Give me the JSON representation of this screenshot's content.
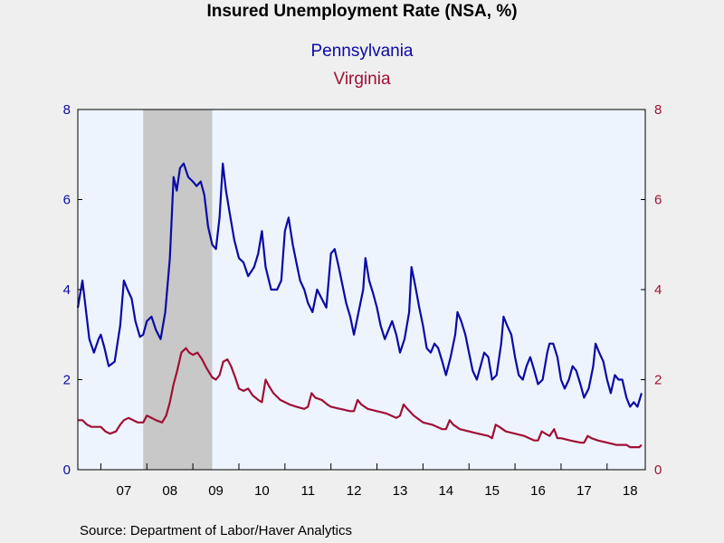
{
  "chart_data": {
    "type": "line",
    "title": "Insured Unemployment Rate (NSA, %)",
    "source": "Source:  Department of Labor/Haver Analytics",
    "x_range": [
      2006.5,
      2018.83
    ],
    "left_axis": {
      "ylim": [
        0,
        8
      ],
      "ticks": [
        "0",
        "2",
        "4",
        "6",
        "8"
      ],
      "color": "#0a0aa6"
    },
    "right_axis": {
      "ylim": [
        0,
        8
      ],
      "ticks": [
        "0",
        "2",
        "4",
        "6",
        "8"
      ],
      "color": "#a01035"
    },
    "x_tick_labels": [
      {
        "label": "07",
        "year": 2007
      },
      {
        "label": "08",
        "year": 2008
      },
      {
        "label": "09",
        "year": 2009
      },
      {
        "label": "10",
        "year": 2010
      },
      {
        "label": "11",
        "year": 2011
      },
      {
        "label": "12",
        "year": 2012
      },
      {
        "label": "13",
        "year": 2013
      },
      {
        "label": "14",
        "year": 2014
      },
      {
        "label": "15",
        "year": 2015
      },
      {
        "label": "16",
        "year": 2016
      },
      {
        "label": "17",
        "year": 2017
      },
      {
        "label": "18",
        "year": 2018
      }
    ],
    "recession": {
      "start": 2007.92,
      "end": 2009.42,
      "color": "#c8c8c8"
    },
    "grid": false,
    "legend_placement": "top-center",
    "plot_background": "#eef4fe",
    "series": [
      {
        "name": "Pennsylvania",
        "color": "#0a0aa6",
        "axis": "left",
        "points": [
          [
            2006.5,
            3.6
          ],
          [
            2006.6,
            4.2
          ],
          [
            2006.68,
            3.5
          ],
          [
            2006.75,
            2.9
          ],
          [
            2006.85,
            2.6
          ],
          [
            2006.95,
            2.9
          ],
          [
            2007.0,
            3.0
          ],
          [
            2007.08,
            2.7
          ],
          [
            2007.17,
            2.3
          ],
          [
            2007.3,
            2.4
          ],
          [
            2007.42,
            3.2
          ],
          [
            2007.5,
            4.2
          ],
          [
            2007.58,
            4.0
          ],
          [
            2007.67,
            3.8
          ],
          [
            2007.75,
            3.3
          ],
          [
            2007.85,
            2.95
          ],
          [
            2007.92,
            3.0
          ],
          [
            2008.0,
            3.3
          ],
          [
            2008.1,
            3.4
          ],
          [
            2008.2,
            3.1
          ],
          [
            2008.3,
            2.9
          ],
          [
            2008.4,
            3.5
          ],
          [
            2008.5,
            4.7
          ],
          [
            2008.58,
            6.5
          ],
          [
            2008.65,
            6.2
          ],
          [
            2008.72,
            6.7
          ],
          [
            2008.8,
            6.8
          ],
          [
            2008.9,
            6.5
          ],
          [
            2009.0,
            6.4
          ],
          [
            2009.08,
            6.3
          ],
          [
            2009.17,
            6.4
          ],
          [
            2009.25,
            6.1
          ],
          [
            2009.33,
            5.4
          ],
          [
            2009.42,
            5.0
          ],
          [
            2009.5,
            4.9
          ],
          [
            2009.58,
            5.6
          ],
          [
            2009.65,
            6.8
          ],
          [
            2009.72,
            6.2
          ],
          [
            2009.8,
            5.7
          ],
          [
            2009.9,
            5.1
          ],
          [
            2010.0,
            4.7
          ],
          [
            2010.1,
            4.6
          ],
          [
            2010.2,
            4.3
          ],
          [
            2010.33,
            4.5
          ],
          [
            2010.42,
            4.8
          ],
          [
            2010.5,
            5.3
          ],
          [
            2010.58,
            4.5
          ],
          [
            2010.7,
            4.0
          ],
          [
            2010.83,
            4.0
          ],
          [
            2010.92,
            4.2
          ],
          [
            2011.0,
            5.3
          ],
          [
            2011.08,
            5.6
          ],
          [
            2011.17,
            5.0
          ],
          [
            2011.25,
            4.6
          ],
          [
            2011.33,
            4.2
          ],
          [
            2011.42,
            4.0
          ],
          [
            2011.5,
            3.7
          ],
          [
            2011.6,
            3.5
          ],
          [
            2011.7,
            4.0
          ],
          [
            2011.8,
            3.8
          ],
          [
            2011.9,
            3.6
          ],
          [
            2012.0,
            4.8
          ],
          [
            2012.08,
            4.9
          ],
          [
            2012.17,
            4.5
          ],
          [
            2012.25,
            4.1
          ],
          [
            2012.33,
            3.7
          ],
          [
            2012.42,
            3.4
          ],
          [
            2012.5,
            3.0
          ],
          [
            2012.6,
            3.5
          ],
          [
            2012.7,
            4.0
          ],
          [
            2012.75,
            4.7
          ],
          [
            2012.83,
            4.2
          ],
          [
            2012.92,
            3.9
          ],
          [
            2013.0,
            3.6
          ],
          [
            2013.08,
            3.2
          ],
          [
            2013.17,
            2.9
          ],
          [
            2013.25,
            3.1
          ],
          [
            2013.33,
            3.3
          ],
          [
            2013.42,
            3.0
          ],
          [
            2013.5,
            2.6
          ],
          [
            2013.6,
            2.9
          ],
          [
            2013.7,
            3.5
          ],
          [
            2013.75,
            4.5
          ],
          [
            2013.83,
            4.1
          ],
          [
            2013.92,
            3.6
          ],
          [
            2014.0,
            3.2
          ],
          [
            2014.08,
            2.7
          ],
          [
            2014.17,
            2.6
          ],
          [
            2014.25,
            2.8
          ],
          [
            2014.33,
            2.7
          ],
          [
            2014.42,
            2.4
          ],
          [
            2014.5,
            2.1
          ],
          [
            2014.6,
            2.5
          ],
          [
            2014.7,
            3.0
          ],
          [
            2014.75,
            3.5
          ],
          [
            2014.83,
            3.3
          ],
          [
            2014.92,
            3.0
          ],
          [
            2015.0,
            2.6
          ],
          [
            2015.08,
            2.2
          ],
          [
            2015.17,
            2.0
          ],
          [
            2015.25,
            2.3
          ],
          [
            2015.33,
            2.6
          ],
          [
            2015.42,
            2.5
          ],
          [
            2015.5,
            2.0
          ],
          [
            2015.6,
            2.1
          ],
          [
            2015.7,
            2.8
          ],
          [
            2015.75,
            3.4
          ],
          [
            2015.83,
            3.2
          ],
          [
            2015.92,
            3.0
          ],
          [
            2016.0,
            2.5
          ],
          [
            2016.08,
            2.1
          ],
          [
            2016.17,
            2.0
          ],
          [
            2016.25,
            2.3
          ],
          [
            2016.33,
            2.5
          ],
          [
            2016.42,
            2.2
          ],
          [
            2016.5,
            1.9
          ],
          [
            2016.6,
            2.0
          ],
          [
            2016.7,
            2.6
          ],
          [
            2016.75,
            2.8
          ],
          [
            2016.83,
            2.8
          ],
          [
            2016.92,
            2.5
          ],
          [
            2017.0,
            2.0
          ],
          [
            2017.08,
            1.8
          ],
          [
            2017.17,
            2.0
          ],
          [
            2017.25,
            2.3
          ],
          [
            2017.33,
            2.2
          ],
          [
            2017.42,
            1.9
          ],
          [
            2017.5,
            1.6
          ],
          [
            2017.6,
            1.8
          ],
          [
            2017.7,
            2.3
          ],
          [
            2017.75,
            2.8
          ],
          [
            2017.83,
            2.6
          ],
          [
            2017.92,
            2.4
          ],
          [
            2018.0,
            2.0
          ],
          [
            2018.08,
            1.7
          ],
          [
            2018.17,
            2.1
          ],
          [
            2018.25,
            2.0
          ],
          [
            2018.33,
            2.0
          ],
          [
            2018.42,
            1.6
          ],
          [
            2018.5,
            1.4
          ],
          [
            2018.58,
            1.5
          ],
          [
            2018.66,
            1.4
          ],
          [
            2018.75,
            1.7
          ]
        ]
      },
      {
        "name": "Virginia",
        "color": "#a01035",
        "axis": "right",
        "points": [
          [
            2006.5,
            1.1
          ],
          [
            2006.6,
            1.1
          ],
          [
            2006.7,
            1.0
          ],
          [
            2006.8,
            0.95
          ],
          [
            2006.9,
            0.95
          ],
          [
            2007.0,
            0.95
          ],
          [
            2007.1,
            0.85
          ],
          [
            2007.2,
            0.8
          ],
          [
            2007.33,
            0.85
          ],
          [
            2007.42,
            1.0
          ],
          [
            2007.5,
            1.1
          ],
          [
            2007.6,
            1.15
          ],
          [
            2007.7,
            1.1
          ],
          [
            2007.8,
            1.05
          ],
          [
            2007.92,
            1.05
          ],
          [
            2008.0,
            1.2
          ],
          [
            2008.1,
            1.15
          ],
          [
            2008.2,
            1.1
          ],
          [
            2008.33,
            1.05
          ],
          [
            2008.42,
            1.2
          ],
          [
            2008.5,
            1.5
          ],
          [
            2008.58,
            1.9
          ],
          [
            2008.66,
            2.2
          ],
          [
            2008.75,
            2.6
          ],
          [
            2008.85,
            2.7
          ],
          [
            2008.92,
            2.6
          ],
          [
            2009.0,
            2.55
          ],
          [
            2009.1,
            2.6
          ],
          [
            2009.2,
            2.45
          ],
          [
            2009.3,
            2.25
          ],
          [
            2009.42,
            2.05
          ],
          [
            2009.5,
            2.0
          ],
          [
            2009.58,
            2.1
          ],
          [
            2009.66,
            2.4
          ],
          [
            2009.75,
            2.45
          ],
          [
            2009.83,
            2.3
          ],
          [
            2009.92,
            2.05
          ],
          [
            2010.0,
            1.8
          ],
          [
            2010.1,
            1.75
          ],
          [
            2010.2,
            1.8
          ],
          [
            2010.3,
            1.65
          ],
          [
            2010.42,
            1.55
          ],
          [
            2010.5,
            1.5
          ],
          [
            2010.58,
            2.0
          ],
          [
            2010.66,
            1.85
          ],
          [
            2010.75,
            1.7
          ],
          [
            2010.9,
            1.55
          ],
          [
            2011.0,
            1.5
          ],
          [
            2011.1,
            1.45
          ],
          [
            2011.25,
            1.4
          ],
          [
            2011.42,
            1.35
          ],
          [
            2011.5,
            1.4
          ],
          [
            2011.58,
            1.7
          ],
          [
            2011.66,
            1.6
          ],
          [
            2011.8,
            1.55
          ],
          [
            2011.92,
            1.45
          ],
          [
            2012.0,
            1.4
          ],
          [
            2012.2,
            1.35
          ],
          [
            2012.42,
            1.3
          ],
          [
            2012.5,
            1.3
          ],
          [
            2012.58,
            1.55
          ],
          [
            2012.66,
            1.45
          ],
          [
            2012.8,
            1.35
          ],
          [
            2013.0,
            1.3
          ],
          [
            2013.2,
            1.25
          ],
          [
            2013.42,
            1.15
          ],
          [
            2013.5,
            1.2
          ],
          [
            2013.58,
            1.45
          ],
          [
            2013.66,
            1.35
          ],
          [
            2013.8,
            1.2
          ],
          [
            2014.0,
            1.05
          ],
          [
            2014.2,
            1.0
          ],
          [
            2014.42,
            0.9
          ],
          [
            2014.5,
            0.9
          ],
          [
            2014.58,
            1.1
          ],
          [
            2014.66,
            1.0
          ],
          [
            2014.8,
            0.9
          ],
          [
            2015.0,
            0.85
          ],
          [
            2015.2,
            0.8
          ],
          [
            2015.42,
            0.75
          ],
          [
            2015.5,
            0.7
          ],
          [
            2015.58,
            1.0
          ],
          [
            2015.66,
            0.95
          ],
          [
            2015.8,
            0.85
          ],
          [
            2016.0,
            0.8
          ],
          [
            2016.2,
            0.75
          ],
          [
            2016.42,
            0.65
          ],
          [
            2016.5,
            0.65
          ],
          [
            2016.58,
            0.85
          ],
          [
            2016.66,
            0.8
          ],
          [
            2016.75,
            0.75
          ],
          [
            2016.85,
            0.9
          ],
          [
            2016.92,
            0.7
          ],
          [
            2017.0,
            0.7
          ],
          [
            2017.2,
            0.65
          ],
          [
            2017.42,
            0.6
          ],
          [
            2017.5,
            0.6
          ],
          [
            2017.58,
            0.75
          ],
          [
            2017.66,
            0.7
          ],
          [
            2017.8,
            0.65
          ],
          [
            2018.0,
            0.6
          ],
          [
            2018.2,
            0.55
          ],
          [
            2018.42,
            0.55
          ],
          [
            2018.5,
            0.5
          ],
          [
            2018.6,
            0.5
          ],
          [
            2018.7,
            0.5
          ],
          [
            2018.75,
            0.55
          ]
        ]
      }
    ]
  }
}
